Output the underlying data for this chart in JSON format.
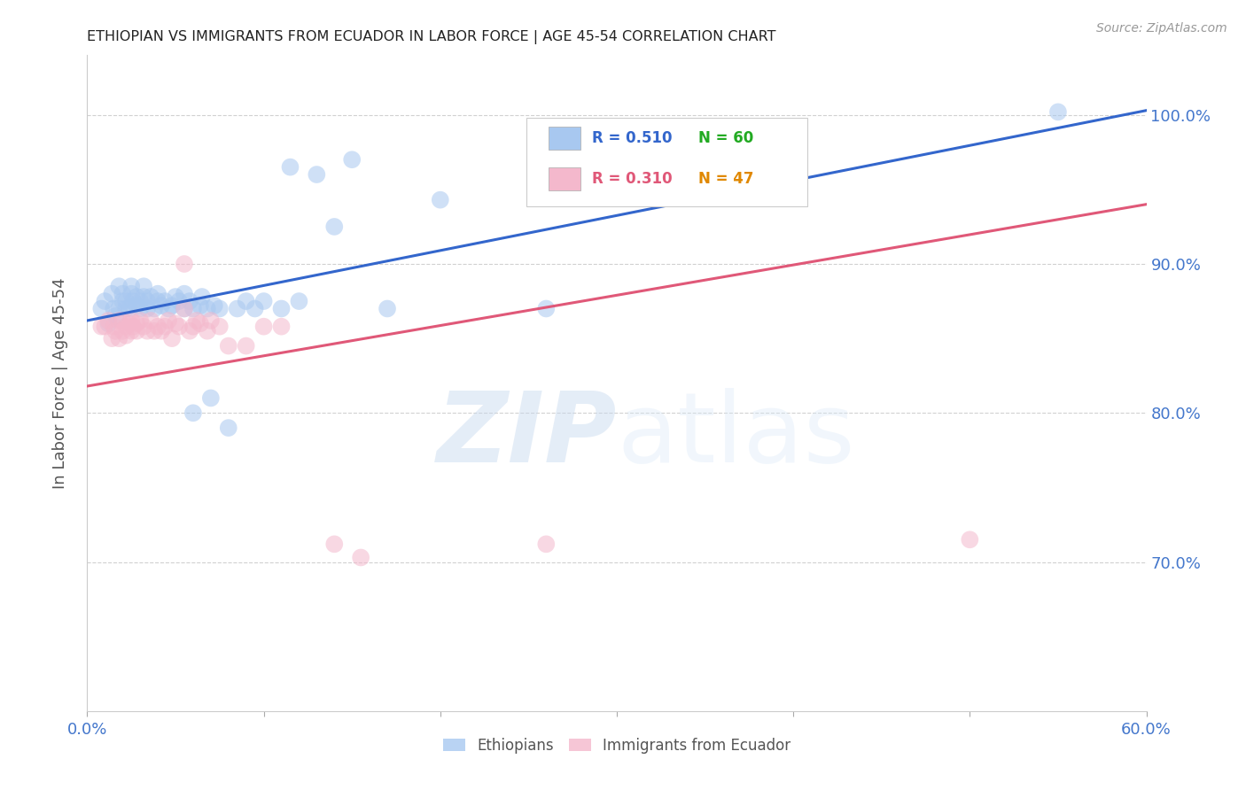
{
  "title": "ETHIOPIAN VS IMMIGRANTS FROM ECUADOR IN LABOR FORCE | AGE 45-54 CORRELATION CHART",
  "source": "Source: ZipAtlas.com",
  "ylabel": "In Labor Force | Age 45-54",
  "xlim": [
    0.0,
    0.6
  ],
  "ylim": [
    0.6,
    1.04
  ],
  "yticks": [
    0.7,
    0.8,
    0.9,
    1.0
  ],
  "ytick_labels": [
    "70.0%",
    "80.0%",
    "90.0%",
    "100.0%"
  ],
  "xticks": [
    0.0,
    0.1,
    0.2,
    0.3,
    0.4,
    0.5,
    0.6
  ],
  "xtick_labels": [
    "0.0%",
    "",
    "",
    "",
    "",
    "",
    "60.0%"
  ],
  "blue_color": "#a8c8f0",
  "pink_color": "#f4b8cc",
  "blue_line_color": "#3366cc",
  "pink_line_color": "#e05878",
  "legend_R_blue": "R = 0.510",
  "legend_N_blue": "N = 60",
  "legend_R_pink": "R = 0.310",
  "legend_N_pink": "N = 47",
  "legend_R_color": "#3366cc",
  "legend_N_color": "#22aa22",
  "legend_R2_color": "#e05878",
  "legend_N2_color": "#e08800",
  "blue_line_x": [
    0.0,
    0.6
  ],
  "blue_line_y": [
    0.862,
    1.003
  ],
  "pink_line_x": [
    0.0,
    0.6
  ],
  "pink_line_y": [
    0.818,
    0.94
  ],
  "watermark_zip": "ZIP",
  "watermark_atlas": "atlas",
  "background_color": "#ffffff",
  "grid_color": "#cccccc",
  "title_color": "#222222",
  "axis_label_color": "#555555",
  "tick_label_color": "#4477cc",
  "blue_scatter": [
    [
      0.008,
      0.87
    ],
    [
      0.01,
      0.875
    ],
    [
      0.012,
      0.86
    ],
    [
      0.014,
      0.88
    ],
    [
      0.015,
      0.87
    ],
    [
      0.016,
      0.865
    ],
    [
      0.018,
      0.87
    ],
    [
      0.018,
      0.885
    ],
    [
      0.02,
      0.875
    ],
    [
      0.02,
      0.88
    ],
    [
      0.022,
      0.87
    ],
    [
      0.022,
      0.875
    ],
    [
      0.024,
      0.87
    ],
    [
      0.025,
      0.88
    ],
    [
      0.025,
      0.885
    ],
    [
      0.026,
      0.875
    ],
    [
      0.028,
      0.878
    ],
    [
      0.028,
      0.872
    ],
    [
      0.03,
      0.875
    ],
    [
      0.03,
      0.87
    ],
    [
      0.032,
      0.878
    ],
    [
      0.032,
      0.885
    ],
    [
      0.034,
      0.875
    ],
    [
      0.034,
      0.87
    ],
    [
      0.036,
      0.878
    ],
    [
      0.038,
      0.87
    ],
    [
      0.04,
      0.875
    ],
    [
      0.04,
      0.88
    ],
    [
      0.042,
      0.872
    ],
    [
      0.044,
      0.875
    ],
    [
      0.046,
      0.87
    ],
    [
      0.048,
      0.872
    ],
    [
      0.05,
      0.878
    ],
    [
      0.052,
      0.875
    ],
    [
      0.055,
      0.87
    ],
    [
      0.055,
      0.88
    ],
    [
      0.058,
      0.875
    ],
    [
      0.06,
      0.87
    ],
    [
      0.06,
      0.8
    ],
    [
      0.064,
      0.872
    ],
    [
      0.065,
      0.878
    ],
    [
      0.068,
      0.87
    ],
    [
      0.07,
      0.81
    ],
    [
      0.072,
      0.872
    ],
    [
      0.075,
      0.87
    ],
    [
      0.08,
      0.79
    ],
    [
      0.085,
      0.87
    ],
    [
      0.09,
      0.875
    ],
    [
      0.095,
      0.87
    ],
    [
      0.1,
      0.875
    ],
    [
      0.11,
      0.87
    ],
    [
      0.115,
      0.965
    ],
    [
      0.12,
      0.875
    ],
    [
      0.13,
      0.96
    ],
    [
      0.14,
      0.925
    ],
    [
      0.15,
      0.97
    ],
    [
      0.17,
      0.87
    ],
    [
      0.2,
      0.943
    ],
    [
      0.26,
      0.87
    ],
    [
      0.55,
      1.002
    ]
  ],
  "pink_scatter": [
    [
      0.008,
      0.858
    ],
    [
      0.01,
      0.858
    ],
    [
      0.012,
      0.862
    ],
    [
      0.014,
      0.85
    ],
    [
      0.015,
      0.858
    ],
    [
      0.016,
      0.855
    ],
    [
      0.018,
      0.862
    ],
    [
      0.018,
      0.85
    ],
    [
      0.02,
      0.862
    ],
    [
      0.02,
      0.855
    ],
    [
      0.022,
      0.858
    ],
    [
      0.022,
      0.852
    ],
    [
      0.024,
      0.86
    ],
    [
      0.025,
      0.855
    ],
    [
      0.025,
      0.862
    ],
    [
      0.026,
      0.858
    ],
    [
      0.028,
      0.86
    ],
    [
      0.028,
      0.855
    ],
    [
      0.03,
      0.862
    ],
    [
      0.032,
      0.858
    ],
    [
      0.034,
      0.855
    ],
    [
      0.036,
      0.862
    ],
    [
      0.038,
      0.855
    ],
    [
      0.04,
      0.858
    ],
    [
      0.042,
      0.855
    ],
    [
      0.044,
      0.858
    ],
    [
      0.046,
      0.862
    ],
    [
      0.048,
      0.85
    ],
    [
      0.05,
      0.86
    ],
    [
      0.052,
      0.858
    ],
    [
      0.055,
      0.9
    ],
    [
      0.055,
      0.87
    ],
    [
      0.058,
      0.855
    ],
    [
      0.06,
      0.858
    ],
    [
      0.062,
      0.862
    ],
    [
      0.064,
      0.86
    ],
    [
      0.068,
      0.855
    ],
    [
      0.07,
      0.862
    ],
    [
      0.075,
      0.858
    ],
    [
      0.08,
      0.845
    ],
    [
      0.09,
      0.845
    ],
    [
      0.1,
      0.858
    ],
    [
      0.11,
      0.858
    ],
    [
      0.14,
      0.712
    ],
    [
      0.155,
      0.703
    ],
    [
      0.26,
      0.712
    ],
    [
      0.5,
      0.715
    ]
  ]
}
